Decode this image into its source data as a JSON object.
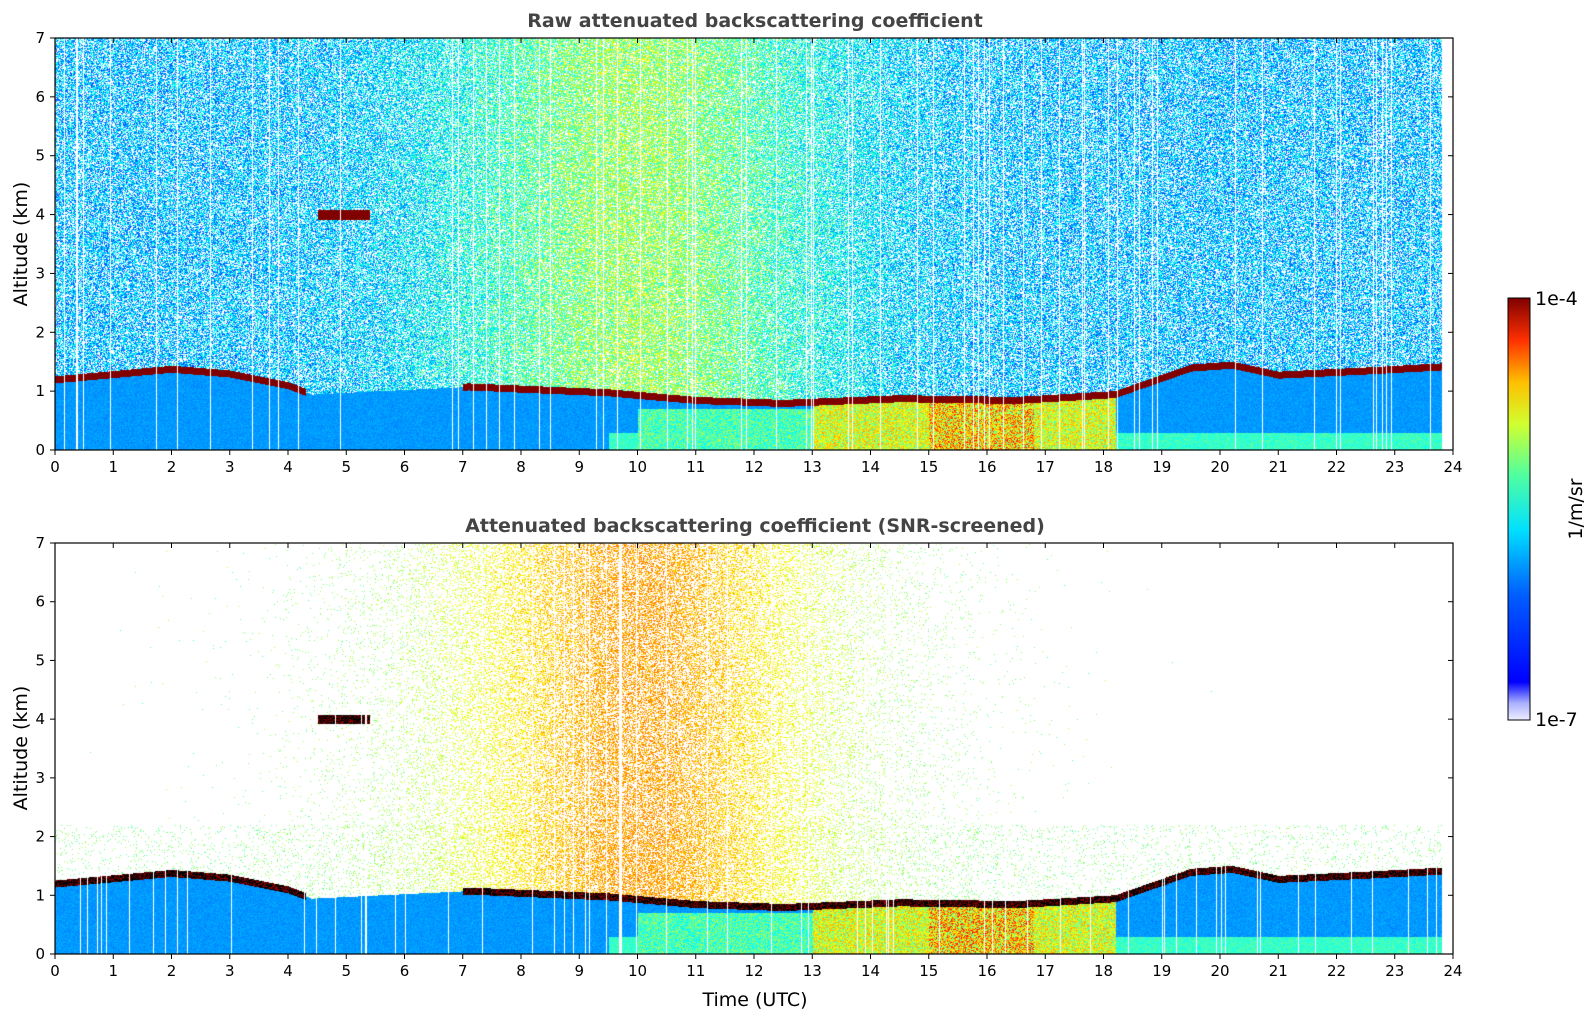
{
  "chart_data": [
    {
      "type": "heatmap",
      "title": "Raw attenuated backscattering coefficient",
      "xlabel": "",
      "ylabel": "Altitude (km)",
      "xlim": [
        0,
        24
      ],
      "ylim": [
        0,
        7
      ],
      "x_ticks": [
        "0",
        "1",
        "2",
        "3",
        "4",
        "5",
        "6",
        "7",
        "8",
        "9",
        "10",
        "11",
        "12",
        "13",
        "14",
        "15",
        "16",
        "17",
        "18",
        "19",
        "20",
        "21",
        "22",
        "23",
        "24"
      ],
      "y_ticks": [
        "0",
        "1",
        "2",
        "3",
        "4",
        "5",
        "6",
        "7"
      ],
      "screened": false,
      "cloud_base_km": [
        {
          "t": 0,
          "z": 1.2
        },
        {
          "t": 2,
          "z": 1.38
        },
        {
          "t": 3,
          "z": 1.3
        },
        {
          "t": 4,
          "z": 1.1
        },
        {
          "t": 4.4,
          "z": 0.95
        },
        {
          "t": 7.1,
          "z": 1.08
        },
        {
          "t": 9.5,
          "z": 0.98
        },
        {
          "t": 11,
          "z": 0.85
        },
        {
          "t": 12.5,
          "z": 0.8
        },
        {
          "t": 14.5,
          "z": 0.88
        },
        {
          "t": 16.5,
          "z": 0.85
        },
        {
          "t": 18.2,
          "z": 0.95
        },
        {
          "t": 19.5,
          "z": 1.4
        },
        {
          "t": 20.2,
          "z": 1.45
        },
        {
          "t": 21,
          "z": 1.28
        },
        {
          "t": 22.5,
          "z": 1.35
        },
        {
          "t": 23.8,
          "z": 1.42
        }
      ],
      "elevated_layer": {
        "t_start": 4.5,
        "t_end": 5.4,
        "z_km": 4.0
      }
    },
    {
      "type": "heatmap",
      "title": "Attenuated backscattering coefficient (SNR-screened)",
      "xlabel": "Time (UTC)",
      "ylabel": "Altitude (km)",
      "xlim": [
        0,
        24
      ],
      "ylim": [
        0,
        7
      ],
      "x_ticks": [
        "0",
        "1",
        "2",
        "3",
        "4",
        "5",
        "6",
        "7",
        "8",
        "9",
        "10",
        "11",
        "12",
        "13",
        "14",
        "15",
        "16",
        "17",
        "18",
        "19",
        "20",
        "21",
        "22",
        "23",
        "24"
      ],
      "y_ticks": [
        "0",
        "1",
        "2",
        "3",
        "4",
        "5",
        "6",
        "7"
      ],
      "screened": true
    }
  ],
  "colorbar": {
    "label": "1/m/sr",
    "max_label": "1e-4",
    "min_label": "1e-7",
    "colormap": "jet"
  }
}
